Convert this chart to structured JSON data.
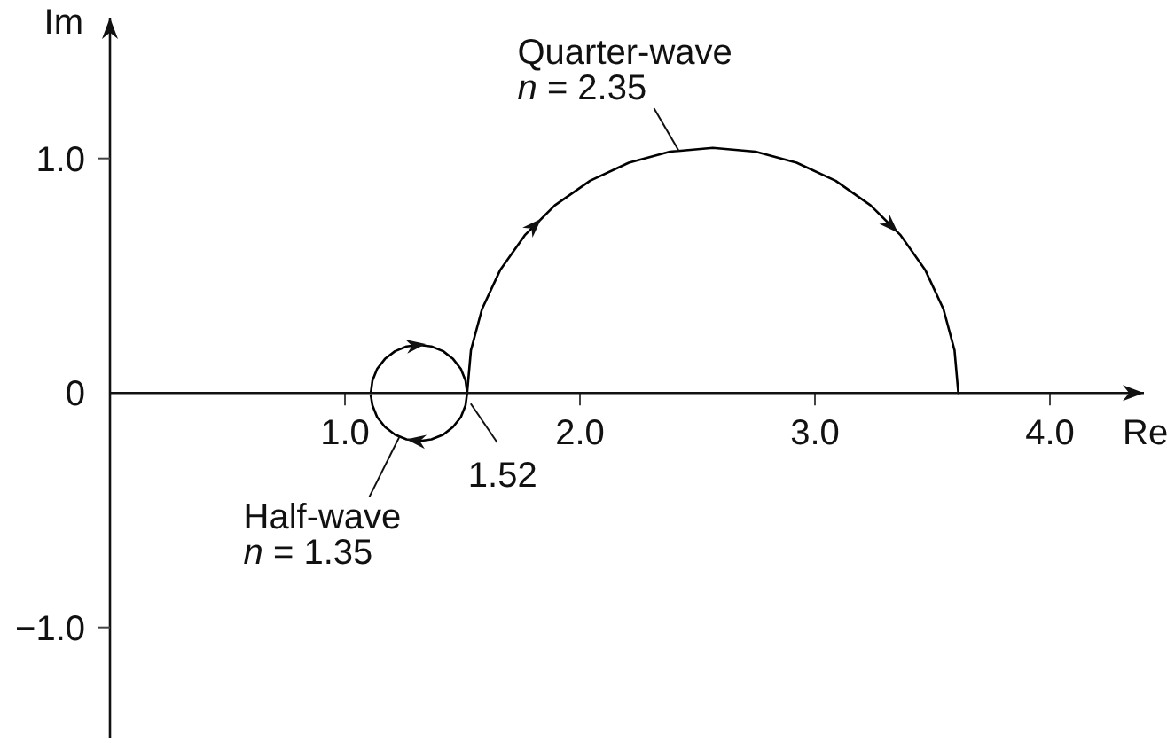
{
  "chart_data": {
    "type": "line",
    "xlabel": "Re",
    "ylabel": "Im",
    "series": [
      {
        "name": "Half-wave n = 1.35",
        "color": "#000000",
        "x": [
          1.11,
          1.117,
          1.137,
          1.17,
          1.213,
          1.262,
          1.315,
          1.368,
          1.418,
          1.46,
          1.493,
          1.513,
          1.52,
          1.513,
          1.493,
          1.46,
          1.418,
          1.368,
          1.315,
          1.262,
          1.213,
          1.17,
          1.137,
          1.117,
          1.11
        ],
        "values": [
          0,
          0.053,
          0.103,
          0.145,
          0.178,
          0.198,
          0.205,
          0.198,
          0.178,
          0.145,
          0.103,
          0.053,
          0,
          -0.053,
          -0.103,
          -0.145,
          -0.178,
          -0.198,
          -0.205,
          -0.198,
          -0.178,
          -0.145,
          -0.103,
          -0.053,
          -0.011
        ]
      },
      {
        "name": "Quarter-wave n = 2.35",
        "color": "#000000",
        "x": [
          1.52,
          1.536,
          1.583,
          1.66,
          1.765,
          1.893,
          2.043,
          2.208,
          2.383,
          2.565,
          2.747,
          2.922,
          3.088,
          3.237,
          3.365,
          3.47,
          3.547,
          3.594,
          3.61
        ],
        "values": [
          0,
          0.182,
          0.357,
          0.523,
          0.672,
          0.8,
          0.905,
          0.982,
          1.029,
          1.045,
          1.029,
          0.982,
          0.905,
          0.8,
          0.672,
          0.523,
          0.357,
          0.182,
          0
        ]
      }
    ],
    "annotations": [
      {
        "text": "1.52",
        "x": 1.52,
        "y": 0
      }
    ],
    "xlim": [
      0,
      4.4
    ],
    "xticks": [
      {
        "value": 1,
        "label": "1.0"
      },
      {
        "value": 2,
        "label": "2.0"
      },
      {
        "value": 3,
        "label": "3.0"
      },
      {
        "value": 4,
        "label": "4.0"
      }
    ],
    "ylim": [
      -1.47,
      1.6
    ],
    "yticks": [
      {
        "value": -1,
        "label": "−1.0"
      },
      0,
      {
        "value": 1,
        "label": "1.0"
      }
    ],
    "marker": "none",
    "line_style": "solid"
  }
}
